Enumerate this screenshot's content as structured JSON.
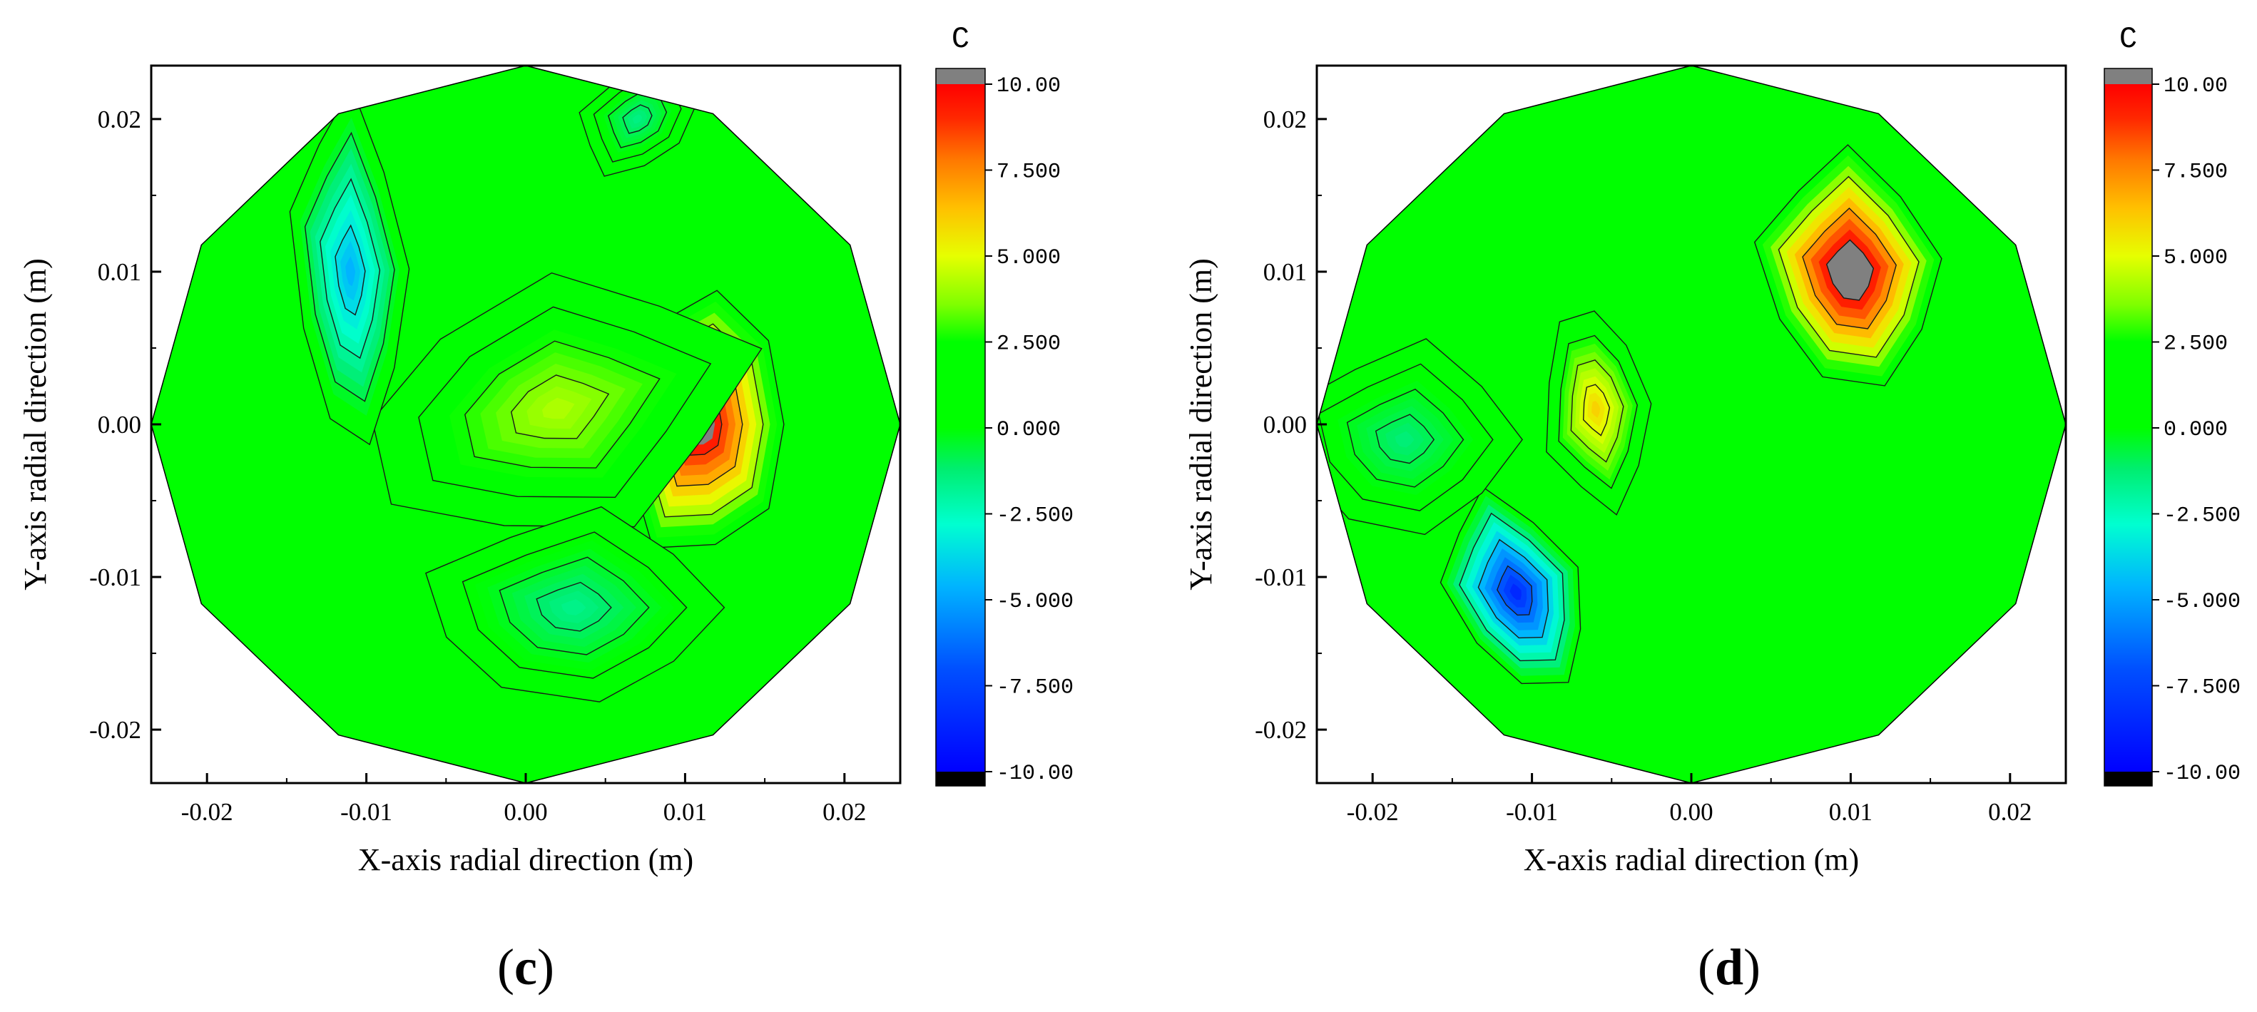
{
  "chart_data": [
    {
      "type": "heatmap",
      "subtype": "filled-contour",
      "panel_label": "(c)",
      "panel_letter": "c",
      "xlabel": "X-axis radial direction (m)",
      "ylabel": "Y-axis radial direction (m)",
      "xlim": [
        -0.0235,
        0.0235
      ],
      "ylim": [
        -0.0235,
        0.0235
      ],
      "x_ticks": [
        -0.02,
        -0.01,
        0.0,
        0.01,
        0.02
      ],
      "x_tick_labels": [
        "-0.02",
        "-0.01",
        "0.00",
        "0.01",
        "0.02"
      ],
      "y_ticks": [
        0.02,
        0.01,
        0.0,
        -0.01,
        -0.02
      ],
      "y_tick_labels": [
        "0.02",
        "0.01",
        "0.00",
        "-0.01",
        "-0.02"
      ],
      "colorbar": {
        "title": "C",
        "min": -10,
        "max": 10,
        "ticks": [
          10,
          7.5,
          5,
          2.5,
          0,
          -2.5,
          -5,
          -7.5,
          -10
        ],
        "tick_labels": [
          "10.00",
          "7.500",
          "5.000",
          "2.500",
          "0.000",
          "-2.500",
          "-5.000",
          "-7.500",
          "-10.00"
        ],
        "over_color": "#808080",
        "under_color": "#000000"
      },
      "features": [
        {
          "name": "hot-spot",
          "x": 0.011,
          "y": 0.0,
          "value": 11
        },
        {
          "name": "warm-ridge",
          "x": 0.002,
          "y": 0.001,
          "value": 4.2
        },
        {
          "name": "cold-streak",
          "x": -0.011,
          "y": 0.01,
          "value": -4.6
        },
        {
          "name": "cool-lower",
          "x": 0.003,
          "y": -0.012,
          "value": -1.6
        },
        {
          "name": "cool-top",
          "x": 0.007,
          "y": 0.02,
          "value": -1.5
        }
      ]
    },
    {
      "type": "heatmap",
      "subtype": "filled-contour",
      "panel_label": "(d)",
      "panel_letter": "d",
      "xlabel": "X-axis radial direction (m)",
      "ylabel": "Y-axis radial direction (m)",
      "xlim": [
        -0.0235,
        0.0235
      ],
      "ylim": [
        -0.0235,
        0.0235
      ],
      "x_ticks": [
        -0.02,
        -0.01,
        0.0,
        0.01,
        0.02
      ],
      "x_tick_labels": [
        "-0.02",
        "-0.01",
        "0.00",
        "0.01",
        "0.02"
      ],
      "y_ticks": [
        0.02,
        0.01,
        0.0,
        -0.01,
        -0.02
      ],
      "y_tick_labels": [
        "0.02",
        "0.01",
        "0.00",
        "-0.01",
        "-0.02"
      ],
      "colorbar": {
        "title": "C",
        "min": -10,
        "max": 10,
        "ticks": [
          10,
          7.5,
          5,
          2.5,
          0,
          -2.5,
          -5,
          -7.5,
          -10
        ],
        "tick_labels": [
          "10.00",
          "7.500",
          "5.000",
          "2.500",
          "0.000",
          "-2.500",
          "-5.000",
          "-7.500",
          "-10.00"
        ],
        "over_color": "#808080",
        "under_color": "#000000"
      },
      "features": [
        {
          "name": "hot-spot",
          "x": 0.01,
          "y": 0.01,
          "value": 12
        },
        {
          "name": "warm-island",
          "x": -0.006,
          "y": 0.001,
          "value": 6
        },
        {
          "name": "cold-spot",
          "x": -0.011,
          "y": -0.011,
          "value": -8.5
        },
        {
          "name": "cool-left",
          "x": -0.018,
          "y": -0.001,
          "value": -1.3
        }
      ]
    }
  ]
}
